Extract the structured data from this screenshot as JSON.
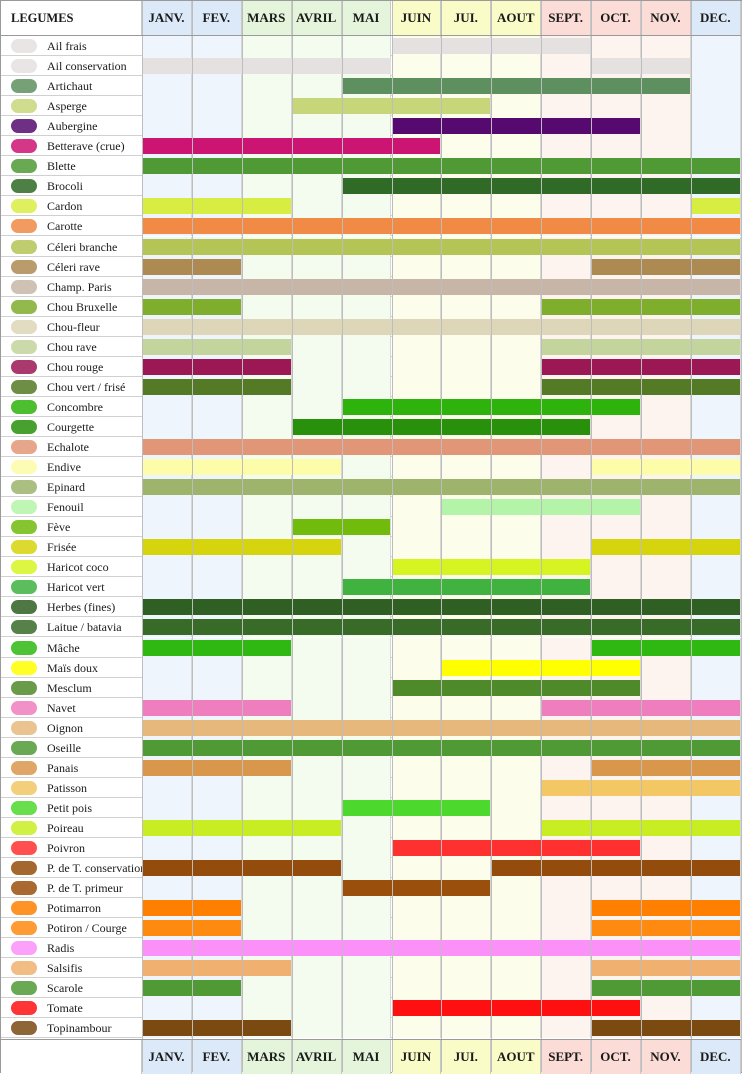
{
  "chart_data": {
    "type": "table",
    "corner_label": "LEGUMES",
    "months": [
      "JANV.",
      "FEV.",
      "MARS",
      "AVRIL",
      "MAI",
      "JUIN",
      "JUI.",
      "AOUT",
      "SEPT.",
      "OCT.",
      "NOV.",
      "DEC."
    ],
    "month_colors": [
      "#dbe9f8",
      "#dbe9f8",
      "#e4f5dc",
      "#e4f5dc",
      "#e4f5dc",
      "#fafcc8",
      "#fafcc8",
      "#fafcc8",
      "#fbdcd6",
      "#fbdcd6",
      "#fbdcd6",
      "#dbe9f8"
    ],
    "month_tints": [
      "#eef5fd",
      "#eef5fd",
      "#f4fbef",
      "#f4fbef",
      "#f4fbef",
      "#fdfdeb",
      "#fdfdeb",
      "#fdfdeb",
      "#fdf3ef",
      "#fdf3ef",
      "#fdf3ef",
      "#eef5fd"
    ],
    "rows": [
      {
        "name": "Ail frais",
        "color": "#e6e1e1",
        "icon": "garlic-icon",
        "ranges": [
          [
            6,
            9
          ]
        ]
      },
      {
        "name": "Ail conservation",
        "color": "#e6e1e1",
        "icon": "garlic-icon",
        "ranges": [
          [
            1,
            5
          ],
          [
            10,
            11
          ]
        ]
      },
      {
        "name": "Artichaut",
        "color": "#5e8f5e",
        "icon": "artichoke-icon",
        "ranges": [
          [
            5,
            11
          ]
        ]
      },
      {
        "name": "Asperge",
        "color": "#c8d67a",
        "icon": "asparagus-icon",
        "ranges": [
          [
            4,
            7
          ]
        ]
      },
      {
        "name": "Aubergine",
        "color": "#560a70",
        "icon": "eggplant-icon",
        "ranges": [
          [
            6,
            10
          ]
        ]
      },
      {
        "name": "Betterave (crue)",
        "color": "#cc1473",
        "icon": "beetroot-icon",
        "ranges": [
          [
            1,
            6
          ]
        ]
      },
      {
        "name": "Blette",
        "color": "#4f9a35",
        "icon": "chard-icon",
        "ranges": [
          [
            1,
            12
          ]
        ]
      },
      {
        "name": "Brocoli",
        "color": "#2f6a26",
        "icon": "broccoli-icon",
        "ranges": [
          [
            5,
            12
          ]
        ]
      },
      {
        "name": "Cardon",
        "color": "#d8ed41",
        "icon": "cardoon-icon",
        "ranges": [
          [
            1,
            3
          ],
          [
            12,
            12
          ]
        ]
      },
      {
        "name": "Carotte",
        "color": "#f08a45",
        "icon": "carrot-icon",
        "ranges": [
          [
            1,
            12
          ]
        ]
      },
      {
        "name": "Céleri branche",
        "color": "#b4c455",
        "icon": "celery-icon",
        "ranges": [
          [
            1,
            12
          ]
        ]
      },
      {
        "name": "Céleri rave",
        "color": "#ad8a52",
        "icon": "celeriac-icon",
        "ranges": [
          [
            1,
            2
          ],
          [
            10,
            12
          ]
        ]
      },
      {
        "name": "Champ. Paris",
        "color": "#c7b6a7",
        "icon": "mushroom-icon",
        "ranges": [
          [
            1,
            12
          ]
        ]
      },
      {
        "name": "Chou Bruxelle",
        "color": "#7fad2c",
        "icon": "brussels-sprout-icon",
        "ranges": [
          [
            1,
            2
          ],
          [
            9,
            12
          ]
        ]
      },
      {
        "name": "Chou-fleur",
        "color": "#ddd6b9",
        "icon": "cauliflower-icon",
        "ranges": [
          [
            1,
            12
          ]
        ]
      },
      {
        "name": "Chou rave",
        "color": "#c3d49c",
        "icon": "kohlrabi-icon",
        "ranges": [
          [
            1,
            3
          ],
          [
            9,
            12
          ]
        ]
      },
      {
        "name": "Chou rouge",
        "color": "#9b1855",
        "icon": "red-cabbage-icon",
        "ranges": [
          [
            1,
            3
          ],
          [
            9,
            12
          ]
        ]
      },
      {
        "name": "Chou vert / frisé",
        "color": "#557a26",
        "icon": "cabbage-icon",
        "ranges": [
          [
            1,
            3
          ],
          [
            9,
            12
          ]
        ]
      },
      {
        "name": "Concombre",
        "color": "#2db30c",
        "icon": "cucumber-icon",
        "ranges": [
          [
            5,
            10
          ]
        ]
      },
      {
        "name": "Courgette",
        "color": "#28900a",
        "icon": "zucchini-icon",
        "ranges": [
          [
            4,
            9
          ]
        ]
      },
      {
        "name": "Echalote",
        "color": "#e19677",
        "icon": "shallot-icon",
        "ranges": [
          [
            1,
            12
          ]
        ]
      },
      {
        "name": "Endive",
        "color": "#fdfca8",
        "icon": "endive-icon",
        "ranges": [
          [
            1,
            4
          ],
          [
            10,
            12
          ]
        ]
      },
      {
        "name": "Epinard",
        "color": "#9eb46c",
        "icon": "spinach-icon",
        "ranges": [
          [
            1,
            12
          ]
        ]
      },
      {
        "name": "Fenouil",
        "color": "#b4f4a8",
        "icon": "fennel-icon",
        "ranges": [
          [
            7,
            10
          ]
        ]
      },
      {
        "name": "Fève",
        "color": "#70bb0c",
        "icon": "broad-bean-icon",
        "ranges": [
          [
            4,
            5
          ]
        ]
      },
      {
        "name": "Frisée",
        "color": "#d6d40c",
        "icon": "frisee-icon",
        "ranges": [
          [
            1,
            4
          ],
          [
            10,
            12
          ]
        ]
      },
      {
        "name": "Haricot coco",
        "color": "#d6f422",
        "icon": "coco-bean-icon",
        "ranges": [
          [
            6,
            9
          ]
        ]
      },
      {
        "name": "Haricot vert",
        "color": "#3fb23f",
        "icon": "green-bean-icon",
        "ranges": [
          [
            5,
            9
          ]
        ]
      },
      {
        "name": "Herbes (fines)",
        "color": "#2f5f22",
        "icon": "herbs-icon",
        "ranges": [
          [
            1,
            12
          ]
        ]
      },
      {
        "name": "Laitue / batavia",
        "color": "#386b28",
        "icon": "lettuce-icon",
        "ranges": [
          [
            1,
            12
          ]
        ]
      },
      {
        "name": "Mâche",
        "color": "#2fb812",
        "icon": "lambs-lettuce-icon",
        "ranges": [
          [
            1,
            3
          ],
          [
            10,
            12
          ]
        ]
      },
      {
        "name": "Maïs doux",
        "color": "#ffff00",
        "icon": "corn-icon",
        "ranges": [
          [
            7,
            10
          ]
        ]
      },
      {
        "name": "Mesclum",
        "color": "#4f8a2a",
        "icon": "mesclun-icon",
        "ranges": [
          [
            6,
            10
          ]
        ]
      },
      {
        "name": "Navet",
        "color": "#ee7ebe",
        "icon": "turnip-icon",
        "ranges": [
          [
            1,
            3
          ],
          [
            9,
            12
          ]
        ]
      },
      {
        "name": "Oignon",
        "color": "#e6b87c",
        "icon": "onion-icon",
        "ranges": [
          [
            1,
            12
          ]
        ]
      },
      {
        "name": "Oseille",
        "color": "#4f9a35",
        "icon": "sorrel-icon",
        "ranges": [
          [
            1,
            12
          ]
        ]
      },
      {
        "name": "Panais",
        "color": "#d9974c",
        "icon": "parsnip-icon",
        "ranges": [
          [
            1,
            3
          ],
          [
            10,
            12
          ]
        ]
      },
      {
        "name": "Patisson",
        "color": "#f2c764",
        "icon": "pattypan-squash-icon",
        "ranges": [
          [
            9,
            12
          ]
        ]
      },
      {
        "name": "Petit pois",
        "color": "#4dd82e",
        "icon": "pea-icon",
        "ranges": [
          [
            5,
            7
          ]
        ]
      },
      {
        "name": "Poireau",
        "color": "#c8ed23",
        "icon": "leek-icon",
        "ranges": [
          [
            1,
            4
          ],
          [
            9,
            12
          ]
        ]
      },
      {
        "name": "Poivron",
        "color": "#ff3030",
        "icon": "pepper-icon",
        "ranges": [
          [
            6,
            10
          ]
        ]
      },
      {
        "name": "P. de T. conservation",
        "color": "#944c0c",
        "icon": "potato-icon",
        "ranges": [
          [
            1,
            4
          ],
          [
            8,
            12
          ]
        ]
      },
      {
        "name": "P. de T. primeur",
        "color": "#9a4f0c",
        "icon": "new-potato-icon",
        "ranges": [
          [
            5,
            7
          ]
        ]
      },
      {
        "name": "Potimarron",
        "color": "#ff8000",
        "icon": "red-kuri-squash-icon",
        "ranges": [
          [
            1,
            2
          ],
          [
            10,
            12
          ]
        ]
      },
      {
        "name": "Potiron / Courge",
        "color": "#ff8a10",
        "icon": "pumpkin-icon",
        "ranges": [
          [
            1,
            2
          ],
          [
            10,
            12
          ]
        ]
      },
      {
        "name": "Radis",
        "color": "#fa90f8",
        "icon": "radish-icon",
        "ranges": [
          [
            1,
            12
          ]
        ]
      },
      {
        "name": "Salsifis",
        "color": "#f0b070",
        "icon": "salsify-icon",
        "ranges": [
          [
            1,
            3
          ],
          [
            10,
            12
          ]
        ]
      },
      {
        "name": "Scarole",
        "color": "#4f9a35",
        "icon": "escarole-icon",
        "ranges": [
          [
            1,
            2
          ],
          [
            10,
            12
          ]
        ]
      },
      {
        "name": "Tomate",
        "color": "#ff1010",
        "icon": "tomato-icon",
        "ranges": [
          [
            6,
            10
          ]
        ]
      },
      {
        "name": "Topinambour",
        "color": "#7a4a10",
        "icon": "jerusalem-artichoke-icon",
        "ranges": [
          [
            1,
            3
          ],
          [
            10,
            12
          ]
        ]
      }
    ]
  }
}
